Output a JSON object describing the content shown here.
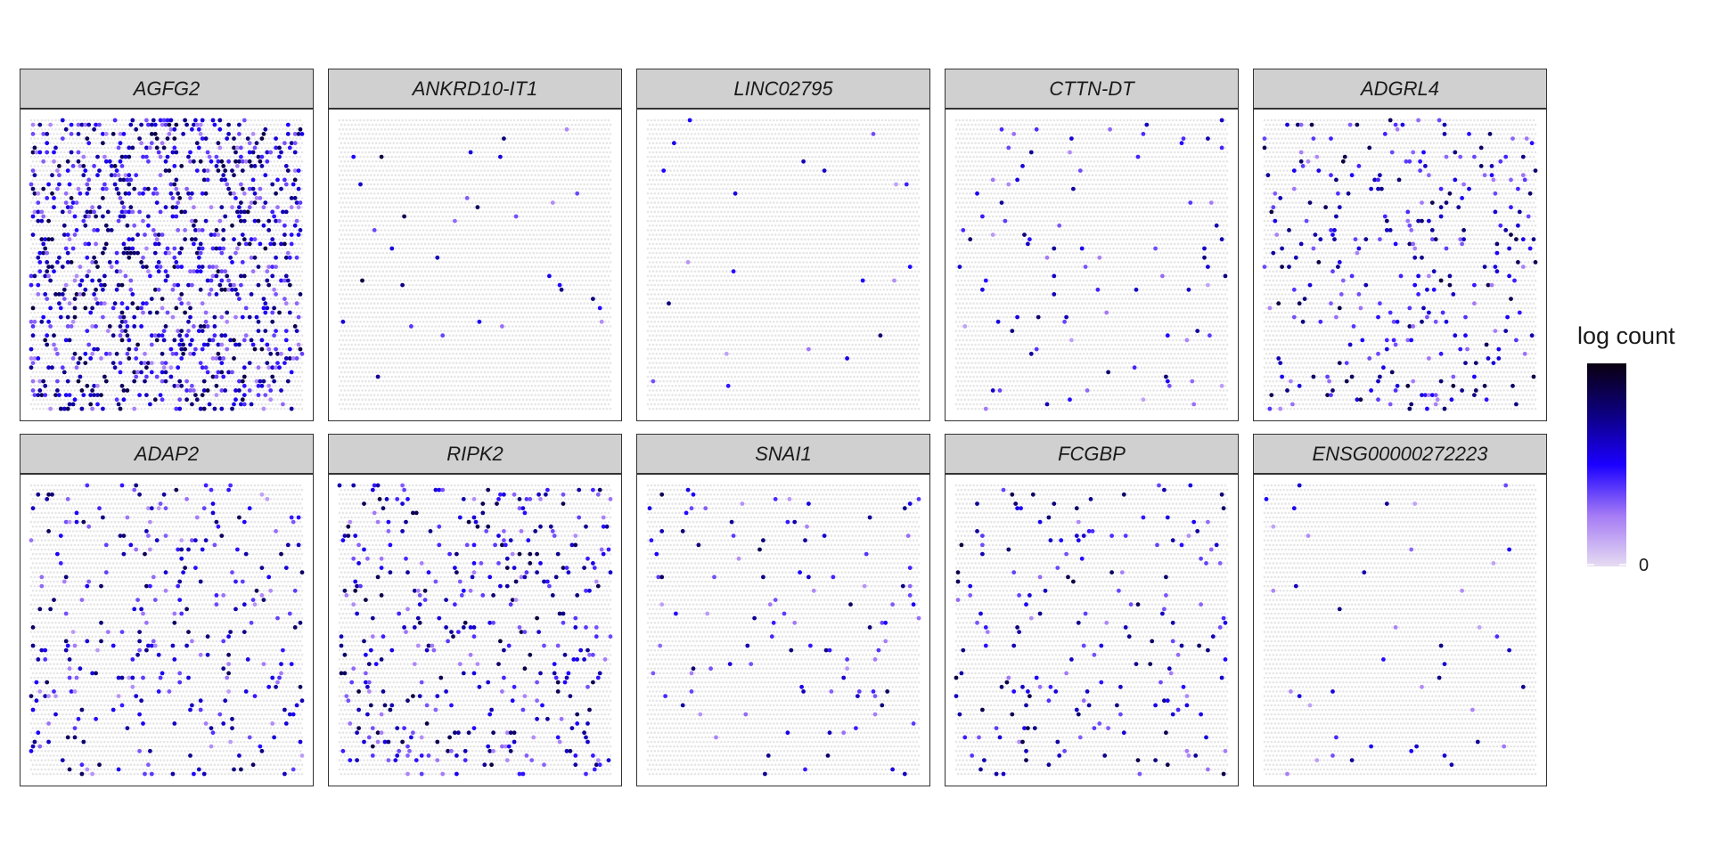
{
  "chart_data": {
    "type": "scatter",
    "layout": "faceted spatial spot map, 2 rows x 5 columns",
    "panels": [
      {
        "gene": "AGFG2",
        "density": 0.22,
        "intensity_bias": 0.55
      },
      {
        "gene": "ANKRD10-IT1",
        "density": 0.006,
        "intensity_bias": 0.55
      },
      {
        "gene": "LINC02795",
        "density": 0.006,
        "intensity_bias": 0.45
      },
      {
        "gene": "CTTN-DT",
        "density": 0.018,
        "intensity_bias": 0.45
      },
      {
        "gene": "ADGRL4",
        "density": 0.065,
        "intensity_bias": 0.55
      },
      {
        "gene": "ADAP2",
        "density": 0.055,
        "intensity_bias": 0.5
      },
      {
        "gene": "RIPK2",
        "density": 0.08,
        "intensity_bias": 0.55
      },
      {
        "gene": "SNAI1",
        "density": 0.02,
        "intensity_bias": 0.5
      },
      {
        "gene": "FCGBP",
        "density": 0.04,
        "intensity_bias": 0.55
      },
      {
        "gene": "ENSG00000272223",
        "density": 0.01,
        "intensity_bias": 0.4
      }
    ],
    "background_spot_color": "#e6e6e6",
    "legend": {
      "title": "log count",
      "tick_label": "0",
      "placement": "right",
      "colors": [
        "#e6dcf2",
        "#a57bf5",
        "#1b00ff",
        "#0d0080",
        "#0a0010"
      ]
    }
  }
}
